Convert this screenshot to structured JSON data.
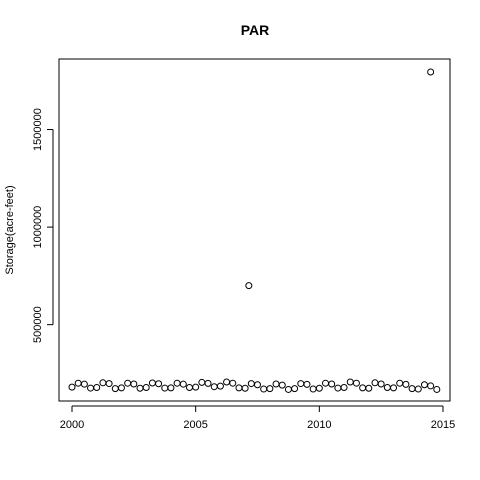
{
  "chart_data": {
    "type": "scatter",
    "title": "PAR",
    "xlabel": "",
    "ylabel": "Storage(acre-feet)",
    "xlim": [
      2000,
      2015
    ],
    "ylim": [
      160000,
      1800000
    ],
    "xticks": [
      2000,
      2005,
      2010,
      2015
    ],
    "xtick_labels": [
      "2000",
      "2005",
      "2010",
      "2015"
    ],
    "yticks": [
      500000,
      1000000,
      1500000
    ],
    "ytick_labels": [
      "500000",
      "1000000",
      "1500000"
    ],
    "grid": false,
    "marker": "open-circle",
    "series": [
      {
        "x": [
          2000.0,
          2000.25,
          2000.5,
          2000.75,
          2001.0,
          2001.25,
          2001.5,
          2001.75,
          2002.0,
          2002.25,
          2002.5,
          2002.75,
          2003.0,
          2003.25,
          2003.5,
          2003.75,
          2004.0,
          2004.25,
          2004.5,
          2004.75,
          2005.0,
          2005.25,
          2005.5,
          2005.75,
          2006.0,
          2006.25,
          2006.5,
          2006.75,
          2007.0,
          2007.25,
          2007.5,
          2007.75,
          2008.0,
          2008.25,
          2008.5,
          2008.75,
          2009.0,
          2009.25,
          2009.5,
          2009.75,
          2010.0,
          2010.25,
          2010.5,
          2010.75,
          2011.0,
          2011.25,
          2011.5,
          2011.75,
          2012.0,
          2012.25,
          2012.5,
          2012.75,
          2013.0,
          2013.25,
          2013.5,
          2013.75,
          2014.0,
          2014.25,
          2014.5,
          2014.75,
          2007.15,
          2014.5
        ],
        "y": [
          180000,
          200000,
          195000,
          175000,
          178000,
          202000,
          198000,
          172000,
          176000,
          200000,
          196000,
          174000,
          178000,
          201000,
          197000,
          175000,
          176000,
          200000,
          195000,
          178000,
          180000,
          204000,
          199000,
          182000,
          185000,
          206000,
          200000,
          176000,
          174000,
          198000,
          192000,
          170000,
          172000,
          196000,
          190000,
          168000,
          172000,
          198000,
          194000,
          170000,
          174000,
          200000,
          196000,
          175000,
          178000,
          206000,
          200000,
          176000,
          174000,
          202000,
          196000,
          178000,
          176000,
          200000,
          194000,
          172000,
          170000,
          192000,
          186000,
          168000,
          700000,
          1795000
        ]
      }
    ]
  }
}
